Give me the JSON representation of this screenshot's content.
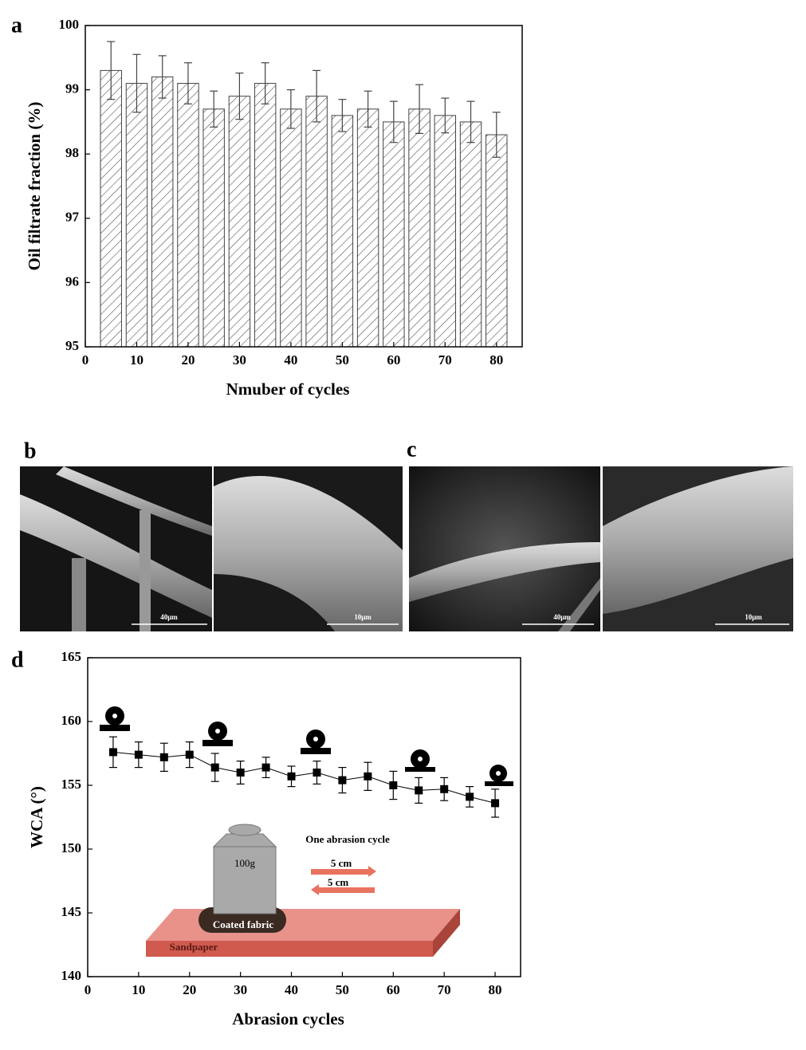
{
  "chart_data": [
    {
      "type": "bar",
      "panel": "a",
      "ylabel": "Oil filtrate fraction (%)",
      "xlabel": "Nmuber of cycles",
      "x": [
        5,
        10,
        15,
        20,
        25,
        30,
        35,
        40,
        45,
        50,
        55,
        60,
        65,
        70,
        75,
        80
      ],
      "values": [
        99.3,
        99.1,
        99.2,
        99.1,
        98.7,
        98.9,
        99.1,
        98.7,
        98.9,
        98.6,
        98.7,
        98.5,
        98.7,
        98.6,
        98.5,
        98.3
      ],
      "errors": [
        0.45,
        0.45,
        0.33,
        0.32,
        0.28,
        0.36,
        0.32,
        0.3,
        0.4,
        0.25,
        0.28,
        0.32,
        0.38,
        0.27,
        0.32,
        0.35
      ],
      "color": "#444444",
      "xlim": [
        0,
        85
      ],
      "xticks": [
        0,
        10,
        20,
        30,
        40,
        50,
        60,
        70,
        80
      ],
      "ylim": [
        95,
        100
      ],
      "yticks": [
        95,
        96,
        97,
        98,
        99,
        100
      ]
    },
    {
      "type": "line",
      "panel": "d",
      "ylabel": "WCA (°)",
      "xlabel": "Abrasion cycles",
      "x": [
        5,
        10,
        15,
        20,
        25,
        30,
        35,
        40,
        45,
        50,
        55,
        60,
        65,
        70,
        75,
        80
      ],
      "values": [
        157.6,
        157.4,
        157.2,
        157.4,
        156.4,
        156.0,
        156.4,
        155.7,
        156.0,
        155.4,
        155.7,
        155.0,
        154.6,
        154.7,
        154.1,
        153.6
      ],
      "errors": [
        1.2,
        1.0,
        1.1,
        1.0,
        1.1,
        0.9,
        0.8,
        0.8,
        0.9,
        1.0,
        1.1,
        1.1,
        1.0,
        0.9,
        0.8,
        1.1
      ],
      "color": "#000000",
      "xlim": [
        0,
        85
      ],
      "xticks": [
        0,
        10,
        20,
        30,
        40,
        50,
        60,
        70,
        80
      ],
      "ylim": [
        140,
        165
      ],
      "yticks": [
        140,
        145,
        150,
        155,
        160,
        165
      ],
      "annotations": [
        "One abrasion cycle",
        "100g",
        "5 cm",
        "5 cm",
        "Coated fabric",
        "Sandpaper"
      ]
    }
  ],
  "images": [
    {
      "panel": "b",
      "scale_bars": [
        "40μm",
        "10μm"
      ]
    },
    {
      "panel": "c",
      "scale_bars": [
        "40μm",
        "10μm"
      ]
    }
  ]
}
